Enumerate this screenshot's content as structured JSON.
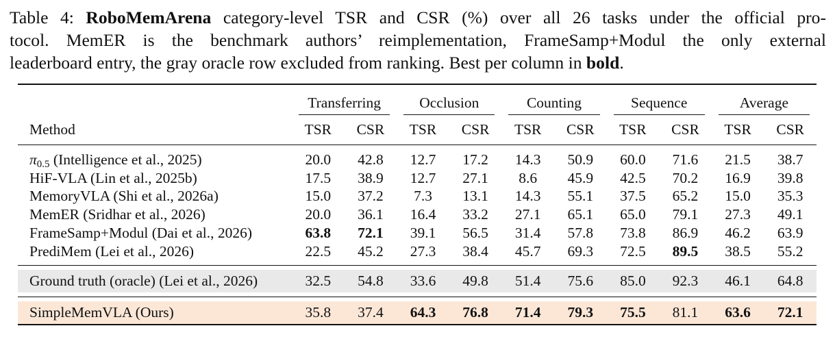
{
  "caption": {
    "label": "Table 4:",
    "bench": "RoboMemArena",
    "line1_rest": " category-level TSR and CSR (%) over all 26 tasks under the official pro-",
    "line2": "tocol. MemER is the benchmark authors’ reimplementation, FrameSamp+Modul the only external",
    "line3_pre": "leaderboard entry, the gray oracle row excluded from ranking. Best per column in ",
    "line3_bold": "bold",
    "line3_post": "."
  },
  "table": {
    "method_header": "Method",
    "groups": [
      "Transferring",
      "Occlusion",
      "Counting",
      "Sequence",
      "Average"
    ],
    "metrics": [
      "TSR",
      "CSR"
    ],
    "rows": [
      {
        "method_prefix": "π",
        "method_sub": "0.5",
        "method": " (Intelligence et al., 2025)",
        "values": [
          "20.0",
          "42.8",
          "12.7",
          "17.2",
          "14.3",
          "50.9",
          "60.0",
          "71.6",
          "21.5",
          "38.7"
        ]
      },
      {
        "method": "HiF-VLA (Lin et al., 2025b)",
        "values": [
          "17.5",
          "38.9",
          "12.7",
          "27.1",
          "8.6",
          "45.9",
          "42.5",
          "70.2",
          "16.9",
          "39.8"
        ]
      },
      {
        "method": "MemoryVLA (Shi et al., 2026a)",
        "values": [
          "15.0",
          "37.2",
          "7.3",
          "13.1",
          "14.3",
          "55.1",
          "37.5",
          "65.2",
          "15.0",
          "35.3"
        ]
      },
      {
        "method": "MemER (Sridhar et al., 2026)",
        "values": [
          "20.0",
          "36.1",
          "16.4",
          "33.2",
          "27.1",
          "65.1",
          "65.0",
          "79.1",
          "27.3",
          "49.1"
        ]
      },
      {
        "method": "FrameSamp+Modul (Dai et al., 2026)",
        "values": [
          "63.8",
          "72.1",
          "39.1",
          "56.5",
          "31.4",
          "57.8",
          "73.8",
          "86.9",
          "46.2",
          "63.9"
        ],
        "bold": [
          0,
          1
        ]
      },
      {
        "method": "PrediMem (Lei et al., 2026)",
        "values": [
          "22.5",
          "45.2",
          "27.3",
          "38.4",
          "45.7",
          "69.3",
          "72.5",
          "89.5",
          "38.5",
          "55.2"
        ],
        "bold": [
          7
        ]
      }
    ],
    "oracle": {
      "method": "Ground truth (oracle) (Lei et al., 2026)",
      "values": [
        "32.5",
        "54.8",
        "33.6",
        "49.8",
        "51.4",
        "75.6",
        "85.0",
        "92.3",
        "46.1",
        "64.8"
      ]
    },
    "ours": {
      "method": "SimpleMemVLA (Ours)",
      "values": [
        "35.8",
        "37.4",
        "64.3",
        "76.8",
        "71.4",
        "79.3",
        "75.5",
        "81.1",
        "63.6",
        "72.1"
      ],
      "bold": [
        2,
        3,
        4,
        5,
        6,
        8,
        9
      ]
    },
    "colors": {
      "oracle_bg": "#e9e9e9",
      "ours_bg": "#fce7d7"
    }
  }
}
